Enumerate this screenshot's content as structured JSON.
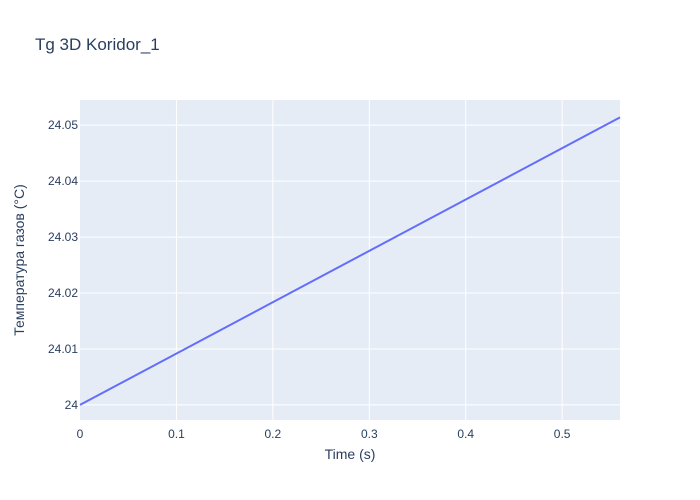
{
  "chart_data": {
    "type": "line",
    "title": "Tg 3D Koridor_1",
    "xlabel": "Time (s)",
    "ylabel": "Температура газов (°C)",
    "xlim": [
      0,
      0.56
    ],
    "ylim": [
      23.9973,
      24.0545
    ],
    "x_ticks": [
      0,
      0.1,
      0.2,
      0.3,
      0.4,
      0.5
    ],
    "x_tick_labels": [
      "0",
      "0.1",
      "0.2",
      "0.3",
      "0.4",
      "0.5"
    ],
    "y_ticks": [
      24,
      24.01,
      24.02,
      24.03,
      24.04,
      24.05
    ],
    "y_tick_labels": [
      "24",
      "24.01",
      "24.02",
      "24.03",
      "24.04",
      "24.05"
    ],
    "grid": true,
    "series": [
      {
        "color": "#636efa",
        "x": [
          0,
          0.56
        ],
        "y": [
          24.0,
          24.0514
        ]
      }
    ]
  },
  "colors": {
    "plot_background": "#e5ecf6",
    "grid": "#ffffff",
    "text": "#2a3f5f",
    "line": "#636efa"
  }
}
